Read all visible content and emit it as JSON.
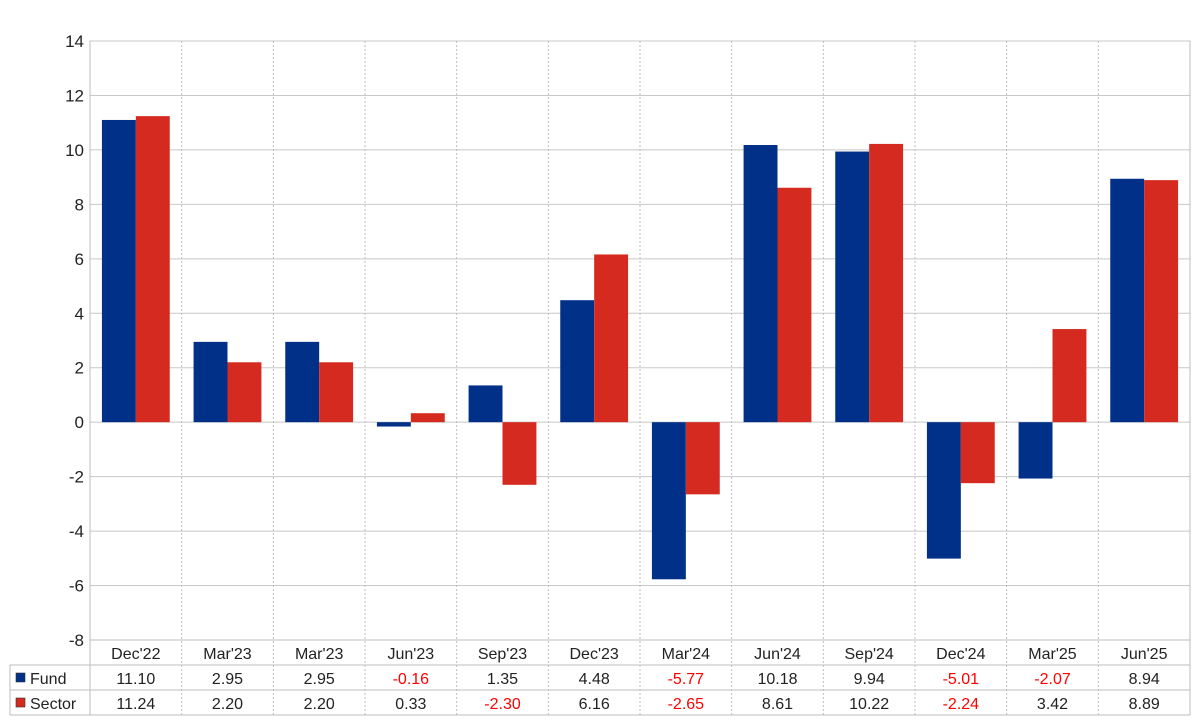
{
  "chart_data": {
    "type": "bar",
    "categories": [
      "Dec'22",
      "Mar'23",
      "Mar'23",
      "Jun'23",
      "Sep'23",
      "Dec'23",
      "Mar'24",
      "Jun'24",
      "Sep'24",
      "Dec'24",
      "Mar'25",
      "Jun'25"
    ],
    "series": [
      {
        "name": "Fund",
        "color": "#003087",
        "values": [
          11.1,
          2.95,
          2.95,
          -0.16,
          1.35,
          4.48,
          -5.77,
          10.18,
          9.94,
          -5.01,
          -2.07,
          8.94
        ],
        "labels": [
          "11.10",
          "2.95",
          "2.95",
          "-0.16",
          "1.35",
          "4.48",
          "-5.77",
          "10.18",
          "9.94",
          "-5.01",
          "-2.07",
          "8.94"
        ]
      },
      {
        "name": "Sector",
        "color": "#d42a1f",
        "values": [
          11.24,
          2.2,
          2.2,
          0.33,
          -2.3,
          6.16,
          -2.65,
          8.61,
          10.22,
          -2.24,
          3.42,
          8.89
        ],
        "labels": [
          "11.24",
          "2.20",
          "2.20",
          "0.33",
          "-2.30",
          "6.16",
          "-2.65",
          "8.61",
          "10.22",
          "-2.24",
          "3.42",
          "8.89"
        ]
      }
    ],
    "ylim": [
      -8,
      14
    ],
    "yticks": [
      -8,
      -6,
      -4,
      -2,
      0,
      2,
      4,
      6,
      8,
      10,
      12,
      14
    ],
    "grid": true,
    "negative_label_color": "#ff0000",
    "positive_label_color": "#222222",
    "legend": "data-table-left"
  }
}
